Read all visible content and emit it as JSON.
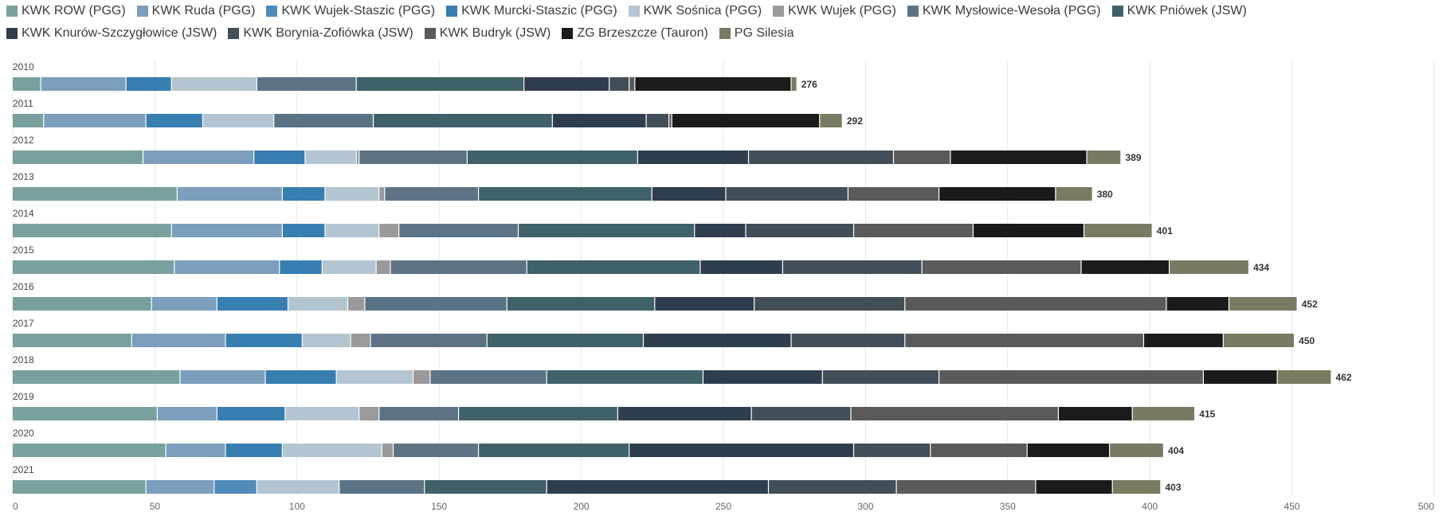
{
  "chart_data": {
    "type": "bar",
    "orientation": "horizontal",
    "stacked": true,
    "title": "",
    "xlabel": "",
    "ylabel": "",
    "xlim": [
      0,
      500
    ],
    "x_ticks": [
      0,
      50,
      100,
      150,
      200,
      250,
      300,
      350,
      400,
      450,
      500
    ],
    "grid": true,
    "legend_position": "top",
    "categories": [
      "2010",
      "2011",
      "2012",
      "2013",
      "2014",
      "2015",
      "2016",
      "2017",
      "2018",
      "2019",
      "2020",
      "2021"
    ],
    "totals": [
      276,
      292,
      389,
      380,
      401,
      434,
      452,
      450,
      462,
      415,
      404,
      403
    ],
    "series": [
      {
        "name": "KWK ROW (PGG)",
        "color": "#78a19d",
        "values": [
          10,
          11,
          46,
          58,
          56,
          57,
          49,
          42,
          59,
          51,
          54,
          47
        ]
      },
      {
        "name": "KWK Ruda (PGG)",
        "color": "#7b9fbd",
        "values": [
          30,
          36,
          39,
          37,
          39,
          37,
          23,
          33,
          30,
          21,
          21,
          24
        ]
      },
      {
        "name": "KWK Wujek-Staszic (PGG)",
        "color": "#4f8bbb",
        "values": [
          0,
          0,
          0,
          0,
          0,
          0,
          0,
          0,
          0,
          0,
          0,
          15
        ]
      },
      {
        "name": "KWK Murcki-Staszic (PGG)",
        "color": "#377eb1",
        "values": [
          16,
          20,
          18,
          15,
          15,
          15,
          25,
          27,
          25,
          24,
          20,
          0
        ]
      },
      {
        "name": "KWK Sośnica (PGG)",
        "color": "#b3c5d1",
        "values": [
          30,
          25,
          18,
          19,
          19,
          19,
          21,
          17,
          27,
          26,
          35,
          29
        ]
      },
      {
        "name": "KWK Wujek (PGG)",
        "color": "#9a9a9a",
        "values": [
          0,
          0,
          1,
          2,
          7,
          5,
          6,
          7,
          6,
          7,
          4,
          0
        ]
      },
      {
        "name": "KWK Mysłowice-Wesoła (PGG)",
        "color": "#5c7386",
        "values": [
          35,
          35,
          38,
          33,
          42,
          48,
          50,
          41,
          41,
          28,
          30,
          30
        ]
      },
      {
        "name": "KWK Pniówek (JSW)",
        "color": "#3e6267",
        "values": [
          59,
          63,
          60,
          61,
          62,
          61,
          52,
          55,
          55,
          56,
          53,
          43
        ]
      },
      {
        "name": "KWK Knurów-Szczygłowice (JSW)",
        "color": "#2e3e4e",
        "values": [
          30,
          33,
          39,
          26,
          18,
          29,
          35,
          52,
          42,
          47,
          79,
          78
        ]
      },
      {
        "name": "KWK Borynia-Zofiówka (JSW)",
        "color": "#424e58",
        "values": [
          7,
          8,
          51,
          43,
          38,
          49,
          53,
          40,
          41,
          35,
          27,
          45
        ]
      },
      {
        "name": "KWK Budryk (JSW)",
        "color": "#5a5a5a",
        "values": [
          2,
          1,
          20,
          32,
          42,
          56,
          92,
          84,
          93,
          73,
          34,
          49
        ]
      },
      {
        "name": "ZG Brzeszcze (Tauron)",
        "color": "#1b1b1b",
        "values": [
          55,
          52,
          48,
          41,
          39,
          31,
          22,
          28,
          26,
          26,
          29,
          27
        ]
      },
      {
        "name": "PG Silesia",
        "color": "#7a7a62",
        "values": [
          2,
          8,
          12,
          13,
          24,
          28,
          24,
          25,
          19,
          22,
          19,
          17
        ]
      }
    ]
  }
}
